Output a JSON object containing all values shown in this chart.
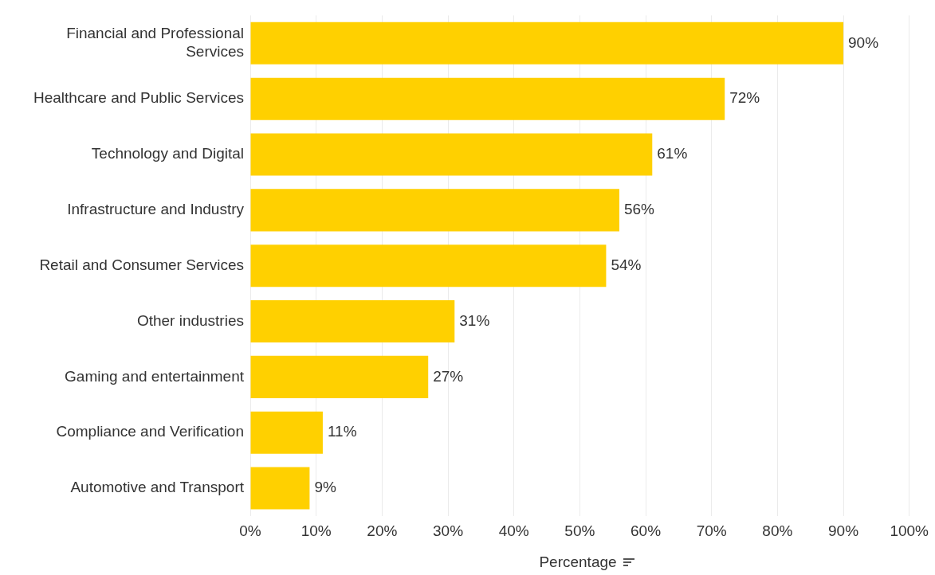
{
  "chart_data": {
    "type": "bar",
    "orientation": "horizontal",
    "xlabel": "Percentage",
    "categories": [
      "Financial and Professional Services",
      "Healthcare and Public Services",
      "Technology and Digital",
      "Infrastructure and Industry",
      "Retail and Consumer Services",
      "Other industries",
      "Gaming and entertainment",
      "Compliance and Verification",
      "Automotive and Transport"
    ],
    "values": [
      90,
      72,
      61,
      56,
      54,
      31,
      27,
      11,
      9
    ],
    "value_labels": [
      "90%",
      "72%",
      "61%",
      "56%",
      "54%",
      "31%",
      "27%",
      "11%",
      "9%"
    ],
    "color": "#ffd000",
    "xlim": [
      0,
      100
    ],
    "xticks": [
      {
        "value": 0,
        "label": "0%"
      },
      {
        "value": 10,
        "label": "10%"
      },
      {
        "value": 20,
        "label": "20%"
      },
      {
        "value": 30,
        "label": "30%"
      },
      {
        "value": 40,
        "label": "40%"
      },
      {
        "value": 50,
        "label": "50%"
      },
      {
        "value": 60,
        "label": "60%"
      },
      {
        "value": 70,
        "label": "70%"
      },
      {
        "value": 80,
        "label": "80%"
      },
      {
        "value": 90,
        "label": "90%"
      },
      {
        "value": 100,
        "label": "100%"
      }
    ],
    "grid": "x",
    "legend": false
  }
}
